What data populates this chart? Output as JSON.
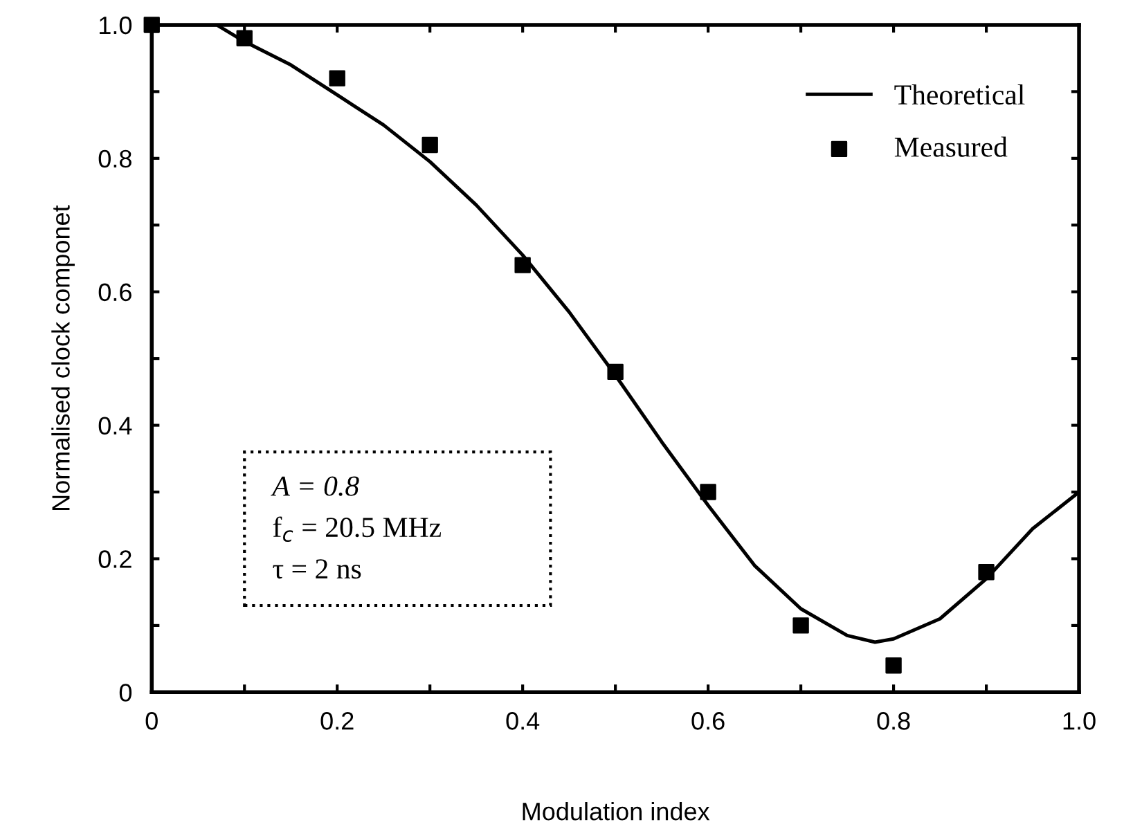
{
  "chart_data": {
    "type": "line",
    "xlabel": "Modulation index",
    "ylabel": "Normalised clock componet",
    "xlim": [
      0,
      1
    ],
    "ylim": [
      0,
      1
    ],
    "xticks": [
      0,
      {
        "value": 0.1,
        "label": null
      },
      0.2,
      {
        "value": 0.3,
        "label": null
      },
      0.4,
      {
        "value": 0.5,
        "label": null
      },
      0.6,
      {
        "value": 0.7,
        "label": null
      },
      0.8,
      {
        "value": 0.9,
        "label": null
      },
      {
        "value": 1,
        "label": "1.0"
      }
    ],
    "yticks": [
      0,
      {
        "value": 0.1,
        "label": null
      },
      0.2,
      {
        "value": 0.3,
        "label": null
      },
      0.4,
      {
        "value": 0.5,
        "label": null
      },
      0.6,
      {
        "value": 0.7,
        "label": null
      },
      0.8,
      {
        "value": 0.9,
        "label": null
      },
      {
        "value": 1,
        "label": "1.0"
      }
    ],
    "grid": false,
    "legend": "top right",
    "series": [
      {
        "name": "Theoretical",
        "color": "#000000",
        "line_style": "solid",
        "marker": "none",
        "x": [
          0,
          0.05,
          0.07,
          0.1,
          0.15,
          0.2,
          0.25,
          0.3,
          0.35,
          0.4,
          0.45,
          0.5,
          0.55,
          0.6,
          0.65,
          0.7,
          0.75,
          0.78,
          0.8,
          0.85,
          0.9,
          0.95,
          1.0
        ],
        "values": [
          1.0,
          1.0,
          1.0,
          0.975,
          0.94,
          0.895,
          0.85,
          0.795,
          0.73,
          0.655,
          0.57,
          0.475,
          0.375,
          0.28,
          0.19,
          0.125,
          0.085,
          0.075,
          0.08,
          0.11,
          0.17,
          0.245,
          0.3
        ]
      },
      {
        "name": "Measured",
        "type": "scatter",
        "color": "#000000",
        "marker": "square",
        "x": [
          0,
          0.1,
          0.2,
          0.3,
          0.4,
          0.5,
          0.6,
          0.7,
          0.8,
          0.9
        ],
        "values": [
          1.0,
          0.98,
          0.92,
          0.82,
          0.64,
          0.48,
          0.3,
          0.1,
          0.04,
          0.18
        ]
      }
    ],
    "annotations": [
      "A = 0.8",
      "f$_{c}$ = 20.5 MHz",
      "τ = 2 ns"
    ]
  }
}
